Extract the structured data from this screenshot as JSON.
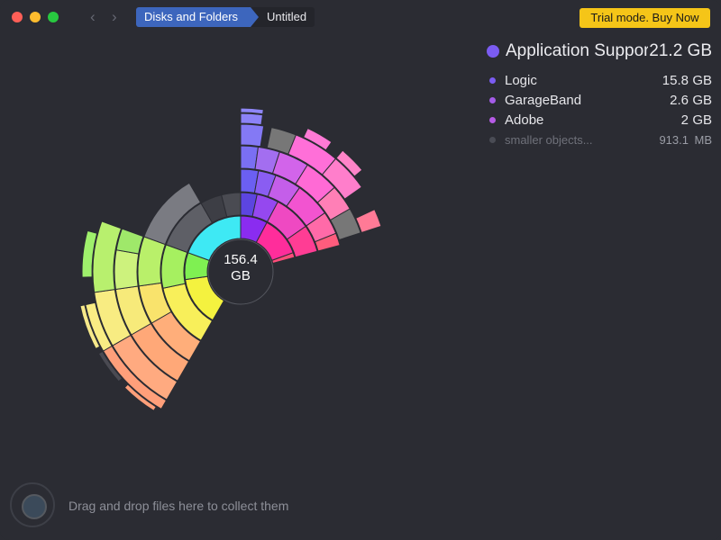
{
  "window": {
    "traffic_lights": {
      "close": "#ff5f57",
      "minimize": "#febc2e",
      "zoom": "#28c840"
    }
  },
  "toolbar": {
    "back_icon": "chevron-left",
    "forward_icon": "chevron-right",
    "breadcrumb": [
      "Disks and Folders",
      "Untitled"
    ],
    "trial_button": "Trial mode. Buy Now"
  },
  "info_panel": {
    "selected": {
      "name": "Application Support",
      "size": "21.2 GB",
      "color": "#7b5cf2"
    },
    "items": [
      {
        "name": "Logic",
        "value": "15.8",
        "unit": "GB",
        "color": "#7b5cf2"
      },
      {
        "name": "GarageBand",
        "value": "2.6",
        "unit": "GB",
        "color": "#a45ce8"
      },
      {
        "name": "Adobe",
        "value": "2",
        "unit": "GB",
        "color": "#b65be6"
      },
      {
        "name": "smaller objects...",
        "value": "913.1",
        "unit": "MB",
        "color": "#4a4c55"
      }
    ]
  },
  "sunburst": {
    "center_value": "156.4",
    "center_unit": "GB",
    "segment_colors": [
      "#3b3bd8",
      "#9333ea",
      "#ff2d9b",
      "#f2ee4a",
      "#8ef06a",
      "#33e6f0",
      "#5b6ff5",
      "#c65cf0",
      "#ff68c8",
      "#ffb070",
      "#c8f07a",
      "#666666"
    ]
  },
  "collector": {
    "hint": "Drag and drop files here to collect them"
  }
}
